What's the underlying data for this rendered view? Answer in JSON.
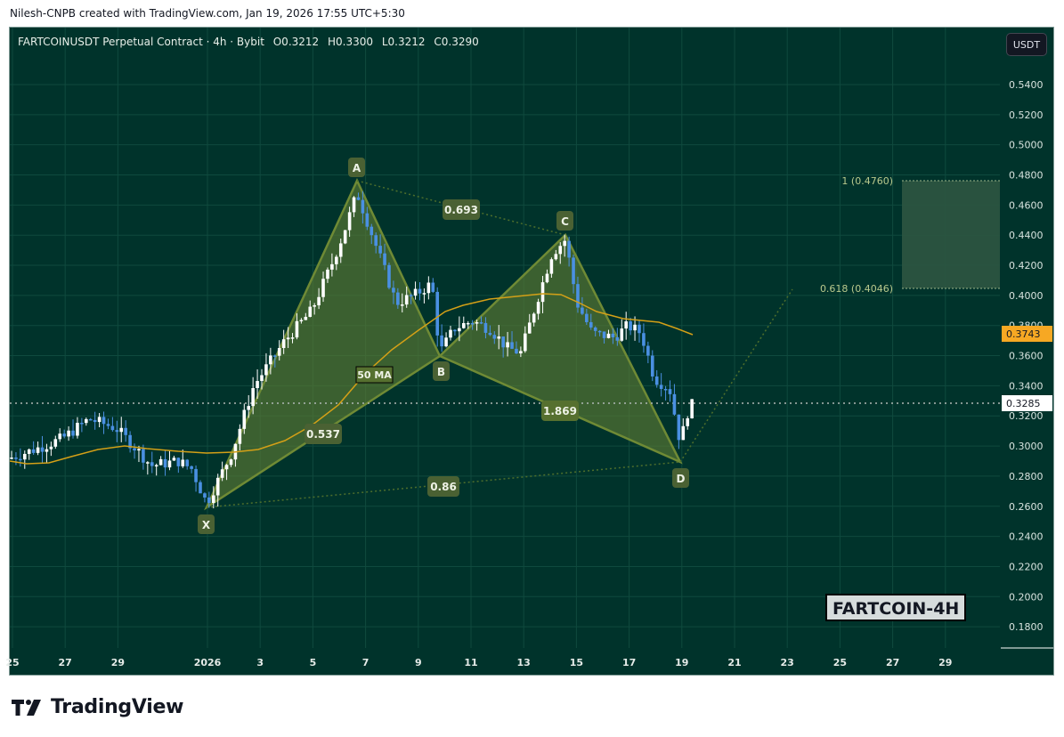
{
  "header": {
    "attribution": "Nilesh-CNPB created with TradingView.com, Jan 19, 2026 17:55 UTC+5:30"
  },
  "legend": {
    "symbol": "FARTCOINUSDT Perpetual Contract · 4h · Bybit",
    "open": "O0.3212",
    "high": "H0.3300",
    "low": "L0.3212",
    "close": "C0.3290"
  },
  "price_axis": {
    "currency": "USDT",
    "ticks": [
      "0.5400",
      "0.5200",
      "0.5000",
      "0.4800",
      "0.4600",
      "0.4400",
      "0.4200",
      "0.4000",
      "0.3800",
      "0.3600",
      "0.3400",
      "0.3200",
      "0.3000",
      "0.2800",
      "0.2600",
      "0.2400",
      "0.2200",
      "0.2000",
      "0.1800"
    ],
    "ma_label": "0.3743",
    "price_label": "0.3285"
  },
  "time_axis": {
    "ticks": [
      "25",
      "27",
      "29",
      "2026",
      "3",
      "5",
      "7",
      "9",
      "11",
      "13",
      "15",
      "17",
      "19",
      "21",
      "23",
      "25",
      "27",
      "29"
    ]
  },
  "colors": {
    "background": "#00332b",
    "bull_candle": "#ffffff",
    "bear_candle": "#4a90e2",
    "ma_line": "#d4a017",
    "pattern_fill": "#4e6b2f",
    "pattern_edge": "#6f7f35",
    "label_bg": "#4a6133",
    "target_zone": "#2b5440",
    "ma_badge": "#f7a823"
  },
  "annotations": {
    "points": {
      "X": "X",
      "A": "A",
      "B": "B",
      "C": "C",
      "D": "D"
    },
    "ratios": {
      "xb": "0.537",
      "ac": "0.693",
      "bd": "1.869",
      "xd": "0.86"
    },
    "ma_text": "50 MA",
    "target_top": "1 (0.4760)",
    "target_bottom": "0.618 (0.4046)"
  },
  "watermark": "FARTCOIN-4H",
  "brand": "TradingView",
  "chart_data": {
    "type": "candlestick",
    "title": "FARTCOINUSDT Perpetual Contract · 4h · Bybit",
    "xlabel": "",
    "ylabel": "USDT",
    "ylim": [
      0.17,
      0.555
    ],
    "x_ticks": [
      "Dec 25",
      "Dec 27",
      "Dec 29",
      "2026",
      "Jan 3",
      "Jan 5",
      "Jan 7",
      "Jan 9",
      "Jan 11",
      "Jan 13",
      "Jan 15",
      "Jan 17",
      "Jan 19",
      "Jan 21",
      "Jan 23",
      "Jan 25",
      "Jan 27",
      "Jan 29"
    ],
    "ohlc_last": {
      "open": 0.3212,
      "high": 0.33,
      "low": 0.3212,
      "close": 0.329
    },
    "current_price": 0.3285,
    "indicators": [
      {
        "name": "50 MA",
        "last_value": 0.3743
      }
    ],
    "harmonic_pattern": {
      "X": {
        "date": "Jan 1",
        "price": 0.259
      },
      "A": {
        "date": "Jan 7",
        "price": 0.476
      },
      "B": {
        "date": "Jan 10",
        "price": 0.359
      },
      "C": {
        "date": "Jan 14.7",
        "price": 0.44
      },
      "D": {
        "date": "Jan 19.2",
        "price": 0.289
      },
      "ratios": {
        "XB": 0.537,
        "AC": 0.693,
        "BD": 1.869,
        "XD": 0.86
      }
    },
    "target_zone": {
      "fib_1": 0.476,
      "fib_0618": 0.4046
    },
    "key_series_approx": [
      {
        "date": "Dec 24",
        "close": 0.294
      },
      {
        "date": "Dec 28",
        "close": 0.318
      },
      {
        "date": "Dec 30",
        "close": 0.292
      },
      {
        "date": "Jan 1",
        "close": 0.265
      },
      {
        "date": "Jan 3",
        "close": 0.335
      },
      {
        "date": "Jan 5",
        "close": 0.395
      },
      {
        "date": "Jan 7",
        "close": 0.455
      },
      {
        "date": "Jan 9",
        "close": 0.402
      },
      {
        "date": "Jan 10",
        "close": 0.365
      },
      {
        "date": "Jan 12",
        "close": 0.385
      },
      {
        "date": "Jan 13",
        "close": 0.362
      },
      {
        "date": "Jan 14.7",
        "close": 0.432
      },
      {
        "date": "Jan 16",
        "close": 0.372
      },
      {
        "date": "Jan 17",
        "close": 0.376
      },
      {
        "date": "Jan 18",
        "close": 0.342
      },
      {
        "date": "Jan 19.2",
        "close": 0.318
      },
      {
        "date": "Jan 19.7",
        "close": 0.329
      }
    ]
  }
}
